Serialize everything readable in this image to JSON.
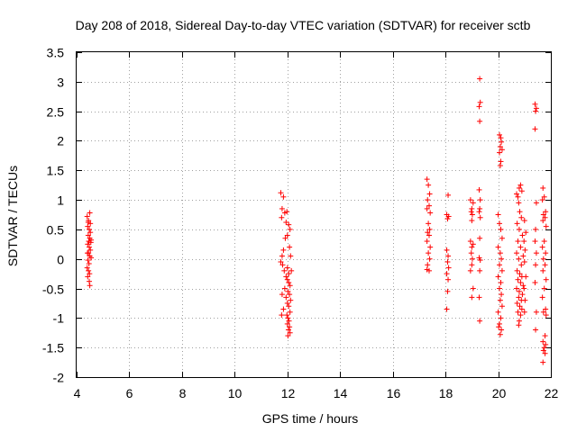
{
  "chart_data": {
    "type": "scatter",
    "title": "Day 208 of 2018, Sidereal Day-to-day VTEC variation (SDTVAR) for receiver sctb",
    "xlabel": "GPS time / hours",
    "ylabel": "SDTVAR / TECUs",
    "xlim": [
      4,
      22
    ],
    "ylim": [
      -2,
      3.5
    ],
    "xticks": [
      "4",
      "6",
      "8",
      "10",
      "12",
      "14",
      "16",
      "18",
      "20",
      "22"
    ],
    "yticks": [
      "3.5",
      "3",
      "2.5",
      "2",
      "1.5",
      "1",
      "0.5",
      "0",
      "-0.5",
      "-1",
      "-1.5",
      "-2"
    ],
    "grid": true,
    "marker": "+",
    "colors": {
      "series": "#ff0000",
      "grid": "#a0a0a0",
      "axes": "#000000"
    },
    "series": [
      {
        "name": "SDTVAR",
        "points": [
          [
            4.4,
            0.72
          ],
          [
            4.45,
            0.65
          ],
          [
            4.5,
            0.78
          ],
          [
            4.42,
            0.55
          ],
          [
            4.48,
            0.5
          ],
          [
            4.52,
            0.6
          ],
          [
            4.44,
            0.4
          ],
          [
            4.5,
            0.35
          ],
          [
            4.46,
            0.3
          ],
          [
            4.54,
            0.28
          ],
          [
            4.42,
            0.25
          ],
          [
            4.48,
            0.2
          ],
          [
            4.52,
            0.15
          ],
          [
            4.45,
            0.1
          ],
          [
            4.5,
            0.05
          ],
          [
            4.55,
            0.02
          ],
          [
            4.43,
            -0.02
          ],
          [
            4.47,
            -0.08
          ],
          [
            4.4,
            -0.15
          ],
          [
            4.45,
            -0.2
          ],
          [
            4.42,
            -0.3
          ],
          [
            4.48,
            -0.38
          ],
          [
            4.5,
            -0.45
          ],
          [
            4.52,
            0.45
          ],
          [
            4.44,
            0.62
          ],
          [
            4.55,
            0.32
          ],
          [
            4.41,
            0.1
          ],
          [
            4.49,
            -0.25
          ],
          [
            11.75,
            1.12
          ],
          [
            11.85,
            1.05
          ],
          [
            11.8,
            0.85
          ],
          [
            11.9,
            0.78
          ],
          [
            11.78,
            0.7
          ],
          [
            11.95,
            0.62
          ],
          [
            12.05,
            0.58
          ],
          [
            12.1,
            0.5
          ],
          [
            12.0,
            0.4
          ],
          [
            11.92,
            0.35
          ],
          [
            12.08,
            0.2
          ],
          [
            11.85,
            0.15
          ],
          [
            11.8,
            0.05
          ],
          [
            11.75,
            -0.05
          ],
          [
            11.82,
            -0.1
          ],
          [
            11.88,
            -0.2
          ],
          [
            11.95,
            -0.3
          ],
          [
            12.0,
            -0.35
          ],
          [
            12.05,
            -0.4
          ],
          [
            12.1,
            -0.45
          ],
          [
            11.9,
            -0.5
          ],
          [
            12.02,
            -0.55
          ],
          [
            12.08,
            -0.6
          ],
          [
            11.95,
            -0.65
          ],
          [
            12.12,
            -0.7
          ],
          [
            12.0,
            -0.75
          ],
          [
            12.05,
            -0.8
          ],
          [
            11.85,
            -0.85
          ],
          [
            12.1,
            -0.9
          ],
          [
            11.98,
            -0.95
          ],
          [
            12.02,
            -1.0
          ],
          [
            12.06,
            -1.05
          ],
          [
            12.0,
            -1.1
          ],
          [
            12.08,
            -1.15
          ],
          [
            12.04,
            -1.2
          ],
          [
            12.1,
            -1.25
          ],
          [
            12.02,
            -1.3
          ],
          [
            11.8,
            -0.6
          ],
          [
            11.78,
            -0.95
          ],
          [
            12.15,
            -0.2
          ],
          [
            12.12,
            0.05
          ],
          [
            11.98,
            0.8
          ],
          [
            12.05,
            -0.25
          ],
          [
            12.0,
            -0.15
          ],
          [
            17.3,
            1.35
          ],
          [
            17.35,
            1.25
          ],
          [
            17.4,
            1.1
          ],
          [
            17.32,
            1.0
          ],
          [
            17.38,
            0.9
          ],
          [
            17.3,
            0.85
          ],
          [
            17.42,
            0.78
          ],
          [
            17.35,
            0.6
          ],
          [
            17.4,
            0.5
          ],
          [
            17.32,
            0.45
          ],
          [
            17.38,
            0.4
          ],
          [
            17.3,
            0.3
          ],
          [
            17.42,
            0.2
          ],
          [
            17.35,
            0.1
          ],
          [
            17.4,
            0.0
          ],
          [
            17.32,
            -0.1
          ],
          [
            17.38,
            -0.2
          ],
          [
            17.3,
            -0.18
          ],
          [
            18.1,
            1.08
          ],
          [
            18.05,
            0.75
          ],
          [
            18.08,
            0.68
          ],
          [
            18.12,
            0.72
          ],
          [
            18.05,
            0.15
          ],
          [
            18.1,
            0.05
          ],
          [
            18.08,
            -0.05
          ],
          [
            18.12,
            -0.15
          ],
          [
            18.05,
            -0.25
          ],
          [
            18.1,
            -0.35
          ],
          [
            18.08,
            -0.55
          ],
          [
            18.05,
            -0.85
          ],
          [
            18.95,
            1.0
          ],
          [
            19.05,
            0.95
          ],
          [
            19.0,
            0.85
          ],
          [
            18.98,
            0.8
          ],
          [
            19.02,
            0.75
          ],
          [
            19.0,
            0.65
          ],
          [
            18.95,
            0.3
          ],
          [
            19.05,
            0.25
          ],
          [
            19.0,
            0.2
          ],
          [
            18.98,
            0.1
          ],
          [
            19.02,
            0.0
          ],
          [
            19.0,
            -0.1
          ],
          [
            18.95,
            -0.2
          ],
          [
            19.05,
            -0.5
          ],
          [
            19.0,
            -0.65
          ],
          [
            19.3,
            3.05
          ],
          [
            19.32,
            2.65
          ],
          [
            19.28,
            2.58
          ],
          [
            19.3,
            2.33
          ],
          [
            19.28,
            1.17
          ],
          [
            19.32,
            1.0
          ],
          [
            19.3,
            0.85
          ],
          [
            19.28,
            0.8
          ],
          [
            19.32,
            0.7
          ],
          [
            19.3,
            0.35
          ],
          [
            19.28,
            0.02
          ],
          [
            19.32,
            -0.02
          ],
          [
            19.3,
            -0.2
          ],
          [
            19.28,
            -0.65
          ],
          [
            19.3,
            -1.05
          ],
          [
            20.05,
            2.1
          ],
          [
            20.1,
            2.05
          ],
          [
            20.12,
            1.98
          ],
          [
            20.08,
            1.9
          ],
          [
            20.15,
            1.85
          ],
          [
            20.05,
            1.8
          ],
          [
            20.1,
            1.65
          ],
          [
            20.08,
            1.58
          ],
          [
            20.0,
            0.75
          ],
          [
            20.05,
            0.6
          ],
          [
            20.1,
            0.5
          ],
          [
            20.15,
            0.35
          ],
          [
            20.0,
            0.2
          ],
          [
            20.08,
            0.1
          ],
          [
            20.12,
            0.0
          ],
          [
            20.05,
            -0.1
          ],
          [
            20.15,
            -0.2
          ],
          [
            20.0,
            -0.3
          ],
          [
            20.1,
            -0.4
          ],
          [
            20.05,
            -0.5
          ],
          [
            20.12,
            -0.6
          ],
          [
            20.08,
            -0.7
          ],
          [
            20.15,
            -0.8
          ],
          [
            20.0,
            -0.9
          ],
          [
            20.1,
            -1.0
          ],
          [
            20.05,
            -1.1
          ],
          [
            20.12,
            -1.2
          ],
          [
            20.08,
            -1.28
          ],
          [
            20.02,
            -1.15
          ],
          [
            20.7,
            1.1
          ],
          [
            20.75,
            1.05
          ],
          [
            20.8,
            1.2
          ],
          [
            20.85,
            1.25
          ],
          [
            20.9,
            1.15
          ],
          [
            20.78,
            0.95
          ],
          [
            20.82,
            0.8
          ],
          [
            20.88,
            0.7
          ],
          [
            20.72,
            0.6
          ],
          [
            20.8,
            0.5
          ],
          [
            20.92,
            0.4
          ],
          [
            20.75,
            0.3
          ],
          [
            20.85,
            0.2
          ],
          [
            20.7,
            0.1
          ],
          [
            20.95,
            0.05
          ],
          [
            20.78,
            0.0
          ],
          [
            20.88,
            -0.1
          ],
          [
            20.72,
            -0.2
          ],
          [
            20.82,
            -0.25
          ],
          [
            20.9,
            -0.3
          ],
          [
            20.75,
            -0.35
          ],
          [
            20.85,
            -0.4
          ],
          [
            20.95,
            -0.45
          ],
          [
            20.7,
            -0.5
          ],
          [
            20.8,
            -0.55
          ],
          [
            20.92,
            -0.6
          ],
          [
            20.78,
            -0.65
          ],
          [
            20.88,
            -0.7
          ],
          [
            20.72,
            -0.75
          ],
          [
            20.82,
            -0.8
          ],
          [
            20.9,
            -0.85
          ],
          [
            20.75,
            -0.9
          ],
          [
            20.85,
            -0.95
          ],
          [
            20.8,
            -1.05
          ],
          [
            20.78,
            -1.12
          ],
          [
            21.0,
            0.65
          ],
          [
            21.05,
            0.45
          ],
          [
            20.98,
            0.3
          ],
          [
            21.02,
            0.15
          ],
          [
            21.0,
            -0.05
          ],
          [
            21.05,
            -0.3
          ],
          [
            20.98,
            -0.5
          ],
          [
            21.02,
            -0.7
          ],
          [
            21.0,
            -0.9
          ],
          [
            21.4,
            2.62
          ],
          [
            21.45,
            2.55
          ],
          [
            21.42,
            2.5
          ],
          [
            21.4,
            2.2
          ],
          [
            21.45,
            0.95
          ],
          [
            21.42,
            0.5
          ],
          [
            21.4,
            0.3
          ],
          [
            21.45,
            0.1
          ],
          [
            21.42,
            -0.1
          ],
          [
            21.4,
            -0.4
          ],
          [
            21.45,
            -0.9
          ],
          [
            21.42,
            -1.2
          ],
          [
            21.7,
            1.2
          ],
          [
            21.75,
            1.05
          ],
          [
            21.68,
            1.0
          ],
          [
            21.8,
            0.8
          ],
          [
            21.72,
            0.75
          ],
          [
            21.78,
            0.7
          ],
          [
            21.7,
            0.65
          ],
          [
            21.82,
            0.55
          ],
          [
            21.75,
            0.3
          ],
          [
            21.68,
            0.2
          ],
          [
            21.8,
            0.1
          ],
          [
            21.72,
            0.0
          ],
          [
            21.78,
            -0.1
          ],
          [
            21.7,
            -0.2
          ],
          [
            21.82,
            -0.35
          ],
          [
            21.75,
            -0.5
          ],
          [
            21.68,
            -0.65
          ],
          [
            21.8,
            -0.85
          ],
          [
            21.72,
            -0.9
          ],
          [
            21.78,
            -1.3
          ],
          [
            21.7,
            -1.4
          ],
          [
            21.75,
            -1.5
          ],
          [
            21.8,
            -1.45
          ],
          [
            21.72,
            -1.55
          ],
          [
            21.78,
            -1.6
          ],
          [
            21.7,
            -1.75
          ],
          [
            21.82,
            -0.95
          ]
        ]
      }
    ]
  }
}
